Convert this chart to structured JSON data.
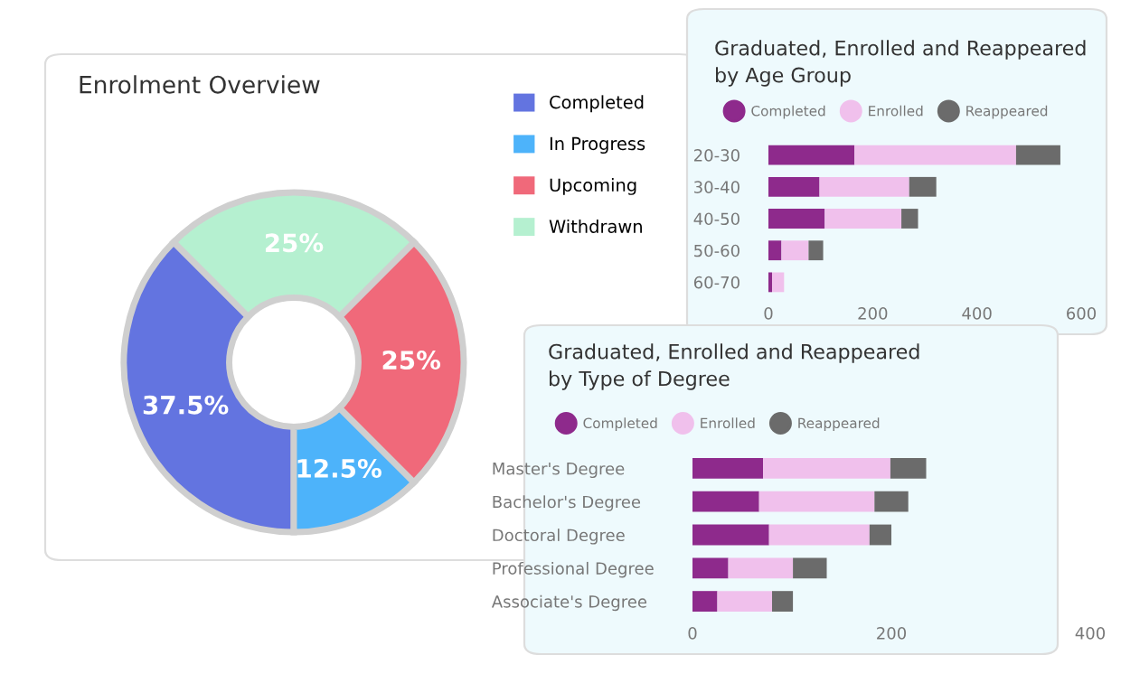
{
  "chart_data": [
    {
      "type": "donut",
      "title": "Enrolment Overview",
      "categories": [
        "Completed",
        "In Progress",
        "Upcoming",
        "Withdrawn"
      ],
      "values": [
        37.5,
        12.5,
        25,
        25
      ],
      "colors": [
        "#6374e0",
        "#4db3fa",
        "#f0697a",
        "#b5f0d0"
      ],
      "value_labels": [
        "37.5%",
        "12.5%",
        "25%",
        "25%"
      ],
      "legend": "right"
    },
    {
      "type": "bar",
      "orientation": "horizontal",
      "stacked": true,
      "title": "Graduated, Enrolled and Reappeared\nby Age Group",
      "categories": [
        "20-30",
        "30-40",
        "40-50",
        "50-60",
        "60-70"
      ],
      "series": [
        {
          "name": "Completed",
          "color": "#8e2a8c",
          "values": [
            165,
            98,
            108,
            25,
            7
          ]
        },
        {
          "name": "Enrolled",
          "color": "#f0c0ec",
          "values": [
            310,
            172,
            147,
            52,
            23
          ]
        },
        {
          "name": "Reappeared",
          "color": "#6b6b6b",
          "values": [
            85,
            52,
            32,
            28,
            0
          ]
        }
      ],
      "xlim": [
        0,
        600
      ],
      "xticks": [
        0,
        200,
        400,
        600
      ],
      "legend": "top",
      "marker": "circle",
      "grid": false
    },
    {
      "type": "bar",
      "orientation": "horizontal",
      "stacked": true,
      "title": "Graduated, Enrolled and Reappeared\nby Type of Degree",
      "categories": [
        "Master's Degree",
        "Bachelor's Degree",
        "Doctoral Degree",
        "Professional Degree",
        "Associate's Degree"
      ],
      "series": [
        {
          "name": "Completed",
          "color": "#8e2a8c",
          "values": [
            71,
            67,
            77,
            36,
            25
          ]
        },
        {
          "name": "Enrolled",
          "color": "#f0c0ec",
          "values": [
            128,
            116,
            101,
            65,
            55
          ]
        },
        {
          "name": "Reappeared",
          "color": "#6b6b6b",
          "values": [
            36,
            34,
            22,
            34,
            21
          ]
        }
      ],
      "xlim": [
        0,
        400
      ],
      "xticks": [
        0,
        200,
        400
      ],
      "legend": "top",
      "marker": "circle",
      "grid": false
    }
  ]
}
